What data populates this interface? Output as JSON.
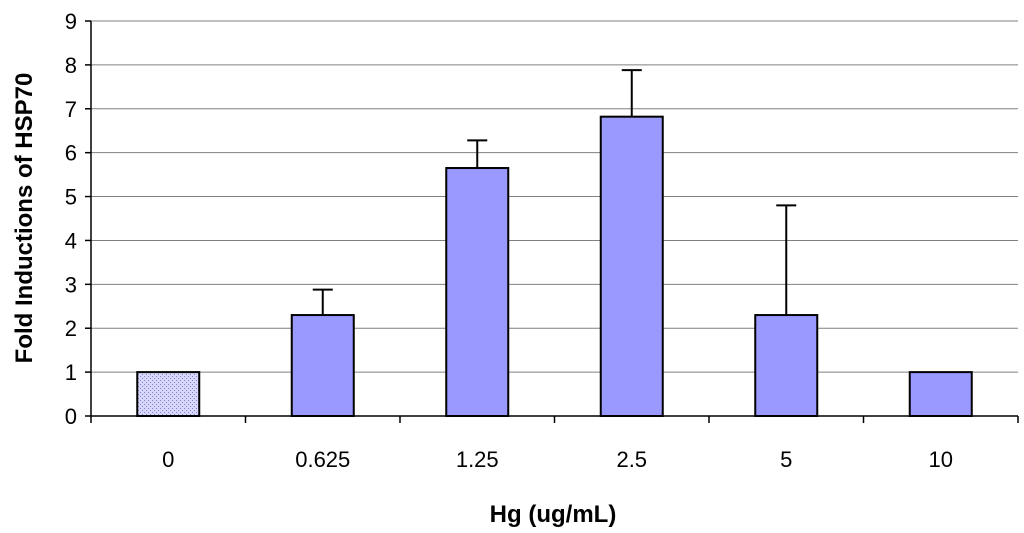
{
  "chart_data": {
    "type": "bar",
    "title": "",
    "xlabel": "Hg (ug/mL)",
    "ylabel": "Fold Inductions of HSP70",
    "categories": [
      "0",
      "0.625",
      "1.25",
      "2.5",
      "5",
      "10"
    ],
    "values": [
      1.0,
      2.3,
      5.65,
      6.82,
      2.3,
      1.0
    ],
    "error_upper": [
      0.0,
      0.58,
      0.63,
      1.06,
      2.5,
      0.0
    ],
    "ylim": [
      0,
      9
    ],
    "yticks": [
      0,
      1,
      2,
      3,
      4,
      5,
      6,
      7,
      8,
      9
    ],
    "grid": true,
    "legend": "none",
    "colors": {
      "bar_fill": "#9999ff",
      "control_fill": "#ccccff",
      "bar_stroke": "#000000",
      "grid": "#808080"
    }
  }
}
